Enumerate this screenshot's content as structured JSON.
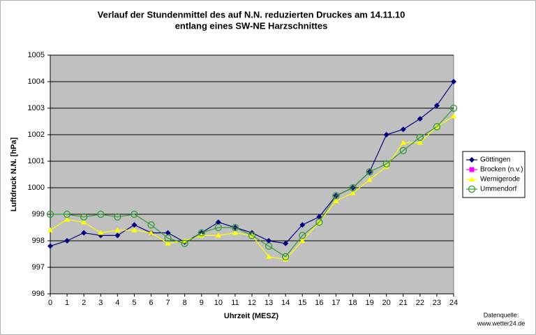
{
  "chart_data": {
    "type": "line",
    "title": [
      "Verlauf der Stundenmittel des auf N.N. reduzierten Druckes  am 14.11.10",
      "entlang eines SW-NE Harzschnittes"
    ],
    "xlabel": "Uhrzeit (MESZ)",
    "ylabel": "Luftdruck N.N. [hPa]",
    "annotations": [
      "Datenquelle:",
      "www.wetter24.de"
    ],
    "x": [
      0,
      1,
      2,
      3,
      4,
      5,
      6,
      7,
      8,
      9,
      10,
      11,
      12,
      13,
      14,
      15,
      16,
      17,
      18,
      19,
      20,
      21,
      22,
      23,
      24
    ],
    "xlim": [
      0,
      24
    ],
    "xticks": [
      0,
      1,
      2,
      3,
      4,
      5,
      6,
      7,
      8,
      9,
      10,
      11,
      12,
      13,
      14,
      15,
      16,
      17,
      18,
      19,
      20,
      21,
      22,
      23,
      24
    ],
    "ylim": [
      996,
      1005
    ],
    "yticks": [
      996,
      997,
      998,
      999,
      1000,
      1001,
      1002,
      1003,
      1004,
      1005
    ],
    "grid": true,
    "legend": "right",
    "series": [
      {
        "name": "Göttingen",
        "color": "#000080",
        "marker": "diamond",
        "values": [
          997.8,
          998.0,
          998.3,
          998.2,
          998.2,
          998.6,
          998.3,
          998.3,
          997.95,
          998.3,
          998.7,
          998.5,
          998.3,
          998.0,
          997.9,
          998.6,
          998.9,
          999.7,
          1000.0,
          1000.6,
          1002.0,
          1002.2,
          1002.6,
          1003.1,
          1004.0
        ]
      },
      {
        "name": "Brocken (n.v.)",
        "color": "#ff00ff",
        "marker": "square",
        "values": [
          null,
          null,
          null,
          null,
          null,
          null,
          null,
          null,
          null,
          null,
          null,
          null,
          null,
          null,
          null,
          null,
          null,
          null,
          null,
          null,
          null,
          null,
          null,
          null,
          null
        ]
      },
      {
        "name": "Wernigerode",
        "color": "#ffff00",
        "marker": "triangle",
        "values": [
          998.4,
          998.8,
          998.7,
          998.3,
          998.4,
          998.4,
          998.3,
          997.9,
          998.0,
          998.2,
          998.2,
          998.3,
          998.2,
          997.4,
          997.3,
          998.0,
          998.7,
          999.5,
          999.8,
          1000.3,
          1000.8,
          1001.7,
          1001.7,
          1002.3,
          1002.7
        ]
      },
      {
        "name": "Ummendorf",
        "color": "#339933",
        "marker": "circle",
        "values": [
          999.0,
          999.0,
          998.9,
          999.0,
          998.9,
          999.0,
          998.6,
          998.1,
          997.9,
          998.3,
          998.5,
          998.5,
          998.2,
          997.8,
          997.4,
          998.2,
          998.7,
          999.7,
          1000.0,
          1000.6,
          1000.9,
          1001.4,
          1001.9,
          1002.3,
          1003.0
        ]
      }
    ]
  }
}
